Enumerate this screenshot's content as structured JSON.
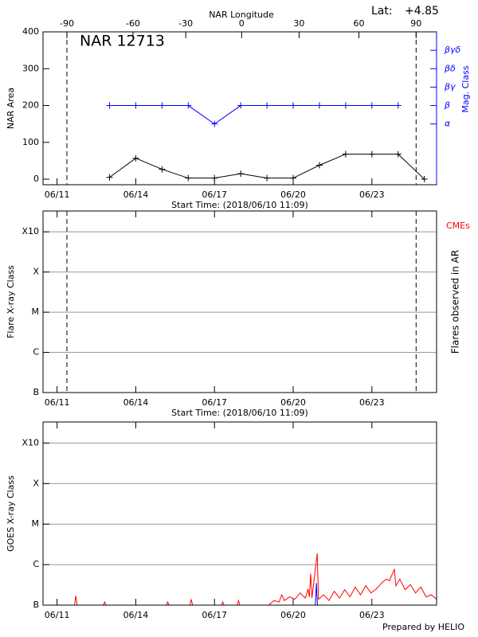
{
  "chart_data": [
    {
      "type": "line",
      "title": "NAR 12713",
      "x_label": "Start Time: (2018/06/10 11:09)",
      "y_label": "NAR Area",
      "y2_label": "Mag. Class",
      "x2_label": "NAR Longitude",
      "lat_label": "Lat:",
      "lat_value": "+4.85",
      "marker": "plus",
      "xlim": [
        0,
        15
      ],
      "xticks": [
        {
          "value": 0.535,
          "label": "06/11"
        },
        {
          "value": 3.535,
          "label": "06/14"
        },
        {
          "value": 6.535,
          "label": "06/17"
        },
        {
          "value": 9.535,
          "label": "06/20"
        },
        {
          "value": 12.535,
          "label": "06/23"
        }
      ],
      "ylim": [
        -15,
        400
      ],
      "yticks": [
        0,
        100,
        200,
        300,
        400
      ],
      "y2lim": [
        -0.3,
        8
      ],
      "y2ticks": [
        {
          "value": 3,
          "label": "α"
        },
        {
          "value": 4,
          "label": "β"
        },
        {
          "value": 5,
          "label": "βγ"
        },
        {
          "value": 6,
          "label": "βδ"
        },
        {
          "value": 7,
          "label": "βγδ"
        }
      ],
      "x2ticks": [
        -90,
        -60,
        -30,
        0,
        30,
        60,
        90
      ],
      "x2_days": [
        0.91,
        3.43,
        5.44,
        7.57,
        9.76,
        12.04,
        14.22
      ],
      "series": [
        {
          "color": "#000000",
          "x": [
            2.535,
            3.535,
            4.535,
            5.535,
            6.535,
            7.535,
            8.535,
            9.535,
            10.535,
            11.535,
            12.535,
            13.535,
            14.535
          ],
          "values": [
            5,
            57,
            27,
            3,
            3,
            15,
            3,
            3,
            38,
            68,
            68,
            68,
            0
          ]
        },
        {
          "color": "#0000ff",
          "axis": "y2",
          "x": [
            2.535,
            3.535,
            4.535,
            5.535,
            6.535,
            7.535,
            8.535,
            9.535,
            10.535,
            11.535,
            12.535,
            13.535
          ],
          "values": [
            4,
            4,
            4,
            4,
            3,
            4,
            4,
            4,
            4,
            4,
            4,
            4
          ]
        }
      ]
    },
    {
      "type": "flare",
      "x_label": "Start Time: (2018/06/10 11:09)",
      "y_label": "Flare X-ray Class",
      "y2_label": "Flares observed in AR",
      "cme_label": "CMEs",
      "cme_color": "#ff0000",
      "log_scale": true,
      "grid": true,
      "xlim": [
        0,
        15
      ],
      "xticks": [
        {
          "value": 0.535,
          "label": "06/11"
        },
        {
          "value": 3.535,
          "label": "06/14"
        },
        {
          "value": 6.535,
          "label": "06/17"
        },
        {
          "value": 9.535,
          "label": "06/20"
        },
        {
          "value": 12.535,
          "label": "06/23"
        }
      ],
      "ylim": [
        1e-07,
        0.0033
      ],
      "yticks": [
        {
          "value": 1e-07,
          "label": "B"
        },
        {
          "value": 1e-06,
          "label": "C"
        },
        {
          "value": 1e-05,
          "label": "M"
        },
        {
          "value": 0.0001,
          "label": "X"
        },
        {
          "value": 0.001,
          "label": "X10"
        }
      ]
    },
    {
      "type": "line",
      "y_label": "GOES X-ray Class",
      "footer": "Prepared by HELIO",
      "log_scale": true,
      "grid": true,
      "xlim": [
        0,
        15
      ],
      "xticks": [
        {
          "value": 0.535,
          "label": "06/11"
        },
        {
          "value": 3.535,
          "label": "06/14"
        },
        {
          "value": 6.535,
          "label": "06/17"
        },
        {
          "value": 9.535,
          "label": "06/20"
        },
        {
          "value": 12.535,
          "label": "06/23"
        }
      ],
      "ylim": [
        1e-07,
        0.0033
      ],
      "yticks": [
        {
          "value": 1e-07,
          "label": "B"
        },
        {
          "value": 1e-06,
          "label": "C"
        },
        {
          "value": 1e-05,
          "label": "M"
        },
        {
          "value": 0.0001,
          "label": "X"
        },
        {
          "value": 0.001,
          "label": "X10"
        }
      ],
      "series": [
        {
          "color": "#ff0000",
          "x": [
            0,
            1.2,
            1.25,
            1.3,
            2.3,
            2.35,
            2.4,
            4.7,
            4.75,
            4.8,
            5.6,
            5.65,
            5.7,
            6.8,
            6.85,
            6.9,
            7.4,
            7.45,
            7.5,
            8.6,
            8.8,
            9.0,
            9.1,
            9.2,
            9.4,
            9.6,
            9.8,
            10.0,
            10.1,
            10.15,
            10.2,
            10.25,
            10.45,
            10.5,
            10.7,
            10.9,
            11.1,
            11.3,
            11.5,
            11.7,
            11.9,
            12.1,
            12.3,
            12.5,
            12.7,
            12.9,
            13.09,
            13.2,
            13.39,
            13.45,
            13.6,
            13.8,
            14.0,
            14.2,
            14.4,
            14.6,
            14.8,
            15.0
          ],
          "values": [
            1e-07,
            1e-07,
            1.7e-07,
            1e-07,
            1e-07,
            1.2e-07,
            1e-07,
            1e-07,
            1.2e-07,
            1e-07,
            1e-07,
            1.4e-07,
            1e-07,
            1e-07,
            1.2e-07,
            1e-07,
            1e-07,
            1.3e-07,
            1e-07,
            1e-07,
            1.3e-07,
            1.2e-07,
            1.8e-07,
            1.3e-07,
            1.6e-07,
            1.4e-07,
            2e-07,
            1.5e-07,
            2.5e-07,
            1.6e-07,
            6e-07,
            1.5e-07,
            1.9e-06,
            1.4e-07,
            1.8e-07,
            1.3e-07,
            2.2e-07,
            1.5e-07,
            2.4e-07,
            1.6e-07,
            2.8e-07,
            1.8e-07,
            3e-07,
            2e-07,
            2.5e-07,
            3.5e-07,
            4.4e-07,
            4e-07,
            7.6e-07,
            3e-07,
            4.4e-07,
            2.4e-07,
            3.2e-07,
            2e-07,
            2.8e-07,
            1.6e-07,
            1.8e-07,
            1.4e-07
          ]
        },
        {
          "color": "#0000ff",
          "x": [
            10.38,
            10.42,
            10.46
          ],
          "values": [
            1e-07,
            3.5e-07,
            1e-07
          ]
        }
      ]
    }
  ]
}
